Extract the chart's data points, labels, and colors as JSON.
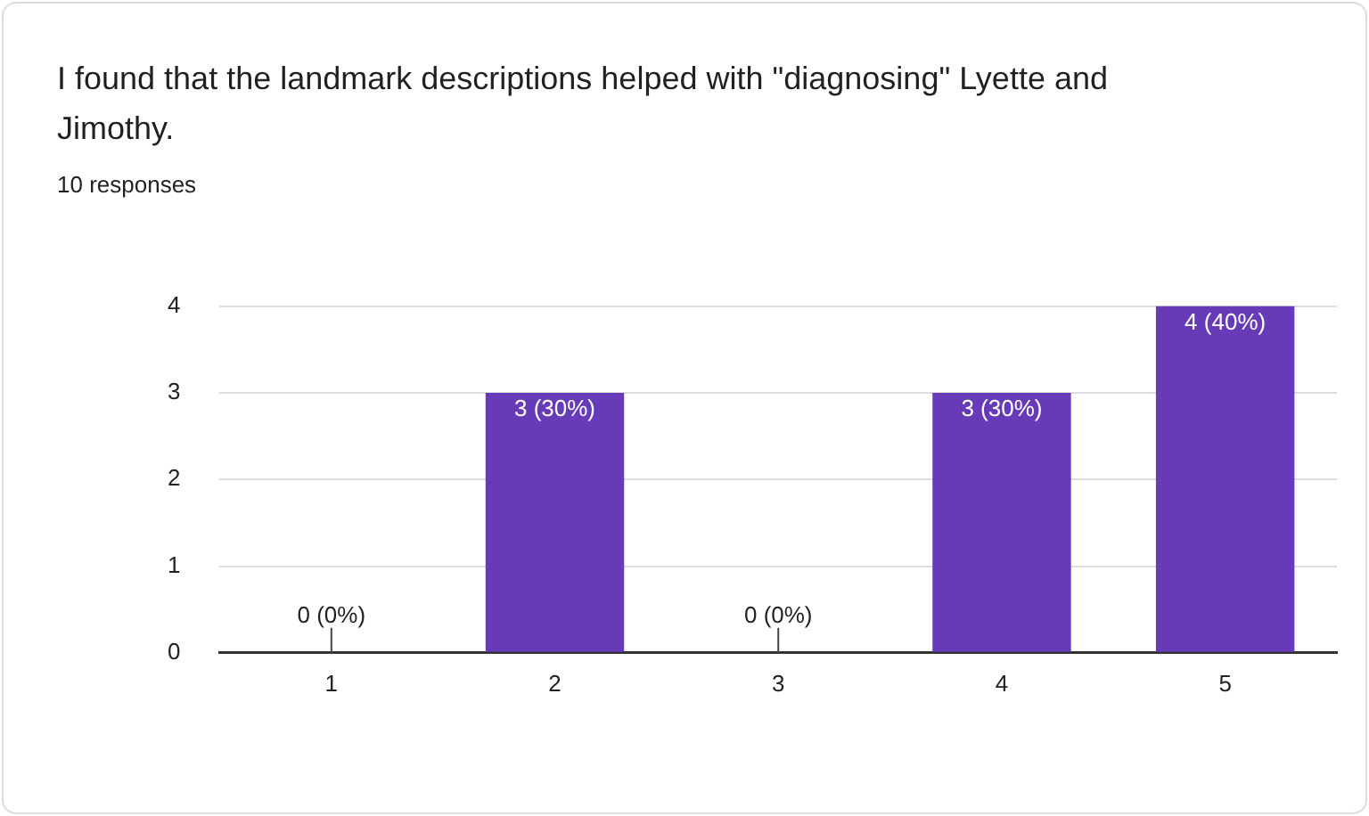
{
  "chart_data": {
    "type": "bar",
    "title": "I found that the landmark descriptions helped with \"diagnosing\" Lyette and Jimothy.",
    "subtitle": "10 responses",
    "categories": [
      "1",
      "2",
      "3",
      "4",
      "5"
    ],
    "values": [
      0,
      3,
      0,
      3,
      4
    ],
    "value_labels": [
      "0 (0%)",
      "3 (30%)",
      "0 (0%)",
      "3 (30%)",
      "4 (40%)"
    ],
    "color": "#673ab7",
    "ylim": [
      0,
      4
    ],
    "yticks": [
      0,
      1,
      2,
      3,
      4
    ],
    "grid": "y",
    "legend": false
  }
}
